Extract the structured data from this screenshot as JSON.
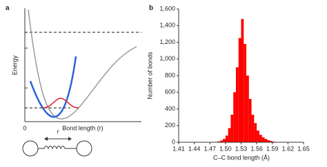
{
  "diagram": {
    "label": "a",
    "ylabel": "Energy",
    "origin": "0",
    "xlabel": "Bond length (r)",
    "spring_label": "r"
  },
  "chart_data": {
    "type": "histogram",
    "panel_label": "b",
    "xlabel": "C–C bond length (Å)",
    "ylabel": "Number of bonds",
    "color": "#ff0000",
    "bins": [
      1.47,
      1.475,
      1.48,
      1.485,
      1.49,
      1.495,
      1.5,
      1.505,
      1.51,
      1.515,
      1.52,
      1.525,
      1.53,
      1.535,
      1.54,
      1.545,
      1.55,
      1.555,
      1.56,
      1.565,
      1.57,
      1.575,
      1.58,
      1.585,
      1.59,
      1.595,
      1.6
    ],
    "values": [
      2,
      3,
      5,
      10,
      20,
      40,
      80,
      170,
      330,
      600,
      900,
      1250,
      1480,
      1180,
      800,
      520,
      330,
      230,
      140,
      90,
      60,
      40,
      25,
      15,
      8,
      4
    ],
    "xlim": [
      1.41,
      1.65
    ],
    "xticks": [
      1.41,
      1.44,
      1.47,
      {
        "value": 1.5,
        "label": "1.50"
      },
      1.53,
      1.56,
      1.59,
      1.62,
      1.65
    ],
    "ylim": [
      0,
      1600
    ],
    "yticks": [
      0,
      200,
      400,
      600,
      800,
      {
        "value": 1000,
        "label": "1,000"
      },
      {
        "value": 1200,
        "label": "1,200"
      },
      {
        "value": 1400,
        "label": "1,400"
      },
      {
        "value": 1600,
        "label": "1,600"
      }
    ]
  }
}
